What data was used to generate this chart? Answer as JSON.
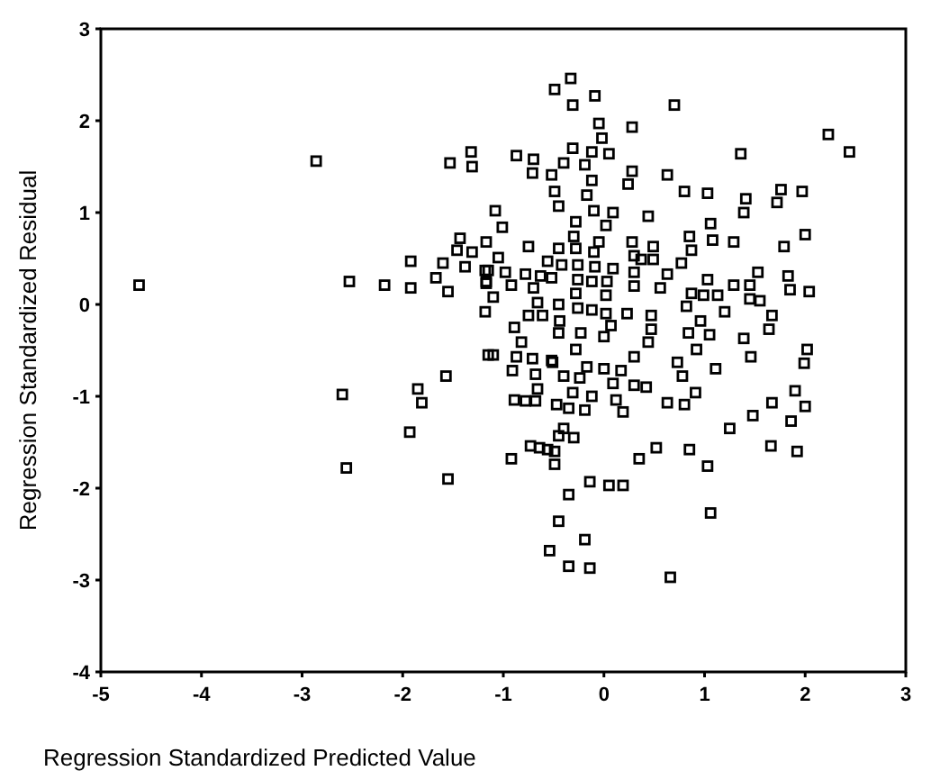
{
  "chart_data": {
    "type": "scatter",
    "xlabel": "Regression Standardized Predicted Value",
    "ylabel": "Regression Standardized Residual",
    "xlim": [
      -5,
      3
    ],
    "ylim": [
      -4,
      3
    ],
    "xticks": [
      -5,
      -4,
      -3,
      -2,
      -1,
      0,
      1,
      2,
      3
    ],
    "yticks": [
      -4,
      -3,
      -2,
      -1,
      0,
      1,
      2,
      3
    ],
    "marker": "square",
    "series": [
      {
        "color": "#000000",
        "x": [
          -4.62,
          -2.86,
          -1.53,
          -1.32,
          -1.31,
          -2.53,
          -2.18,
          -1.92,
          -1.92,
          -1.67,
          -1.6,
          -1.55,
          -1.43,
          -1.46,
          -1.38,
          -1.31,
          -1.17,
          -1.18,
          -1.17,
          -1.18,
          -0.33,
          -0.49,
          -0.09,
          -0.31,
          0.7,
          -0.05,
          0.28,
          -0.02,
          2.23,
          2.44,
          -0.87,
          -0.7,
          -0.31,
          -0.12,
          0.05,
          -0.4,
          -0.19,
          1.36,
          -0.71,
          -0.52,
          -0.12,
          0.28,
          0.24,
          0.63,
          -0.49,
          -0.17,
          0.8,
          1.03,
          1.76,
          1.97,
          1.41,
          1.72,
          -0.45,
          -0.1,
          0.09,
          0.44,
          1.39,
          -1.08,
          -1.01,
          -0.28,
          0.02,
          1.06,
          -0.3,
          0.85,
          1.08,
          1.29,
          2.0,
          -0.75,
          -0.45,
          -0.28,
          -0.05,
          0.28,
          0.49,
          0.87,
          1.79,
          -1.05,
          -0.1,
          0.3,
          0.37,
          0.49,
          0.77,
          -0.56,
          -0.42,
          -0.26,
          -0.09,
          0.09,
          -1.15,
          -0.98,
          -0.78,
          -0.63,
          0.3,
          0.63,
          1.53,
          1.83,
          -1.17,
          -0.92,
          -0.7,
          -0.52,
          -0.26,
          -0.12,
          0.03,
          0.3,
          0.56,
          1.03,
          1.29,
          1.45,
          1.85,
          2.04,
          0.87,
          0.99,
          1.13,
          1.45,
          1.55,
          -1.1,
          -0.66,
          -0.45,
          -0.28,
          0.02,
          -0.75,
          -0.61,
          -0.44,
          -0.26,
          -0.12,
          0.02,
          0.23,
          0.47,
          0.82,
          1.2,
          0.96,
          1.67,
          1.64,
          -0.89,
          -0.82,
          -0.45,
          -0.23,
          0.0,
          0.07,
          0.47,
          0.84,
          1.05,
          1.39,
          2.02,
          -1.1,
          -0.87,
          -0.52,
          -0.28,
          0.44,
          0.92,
          1.46,
          -0.71,
          -0.51,
          -0.17,
          0.0,
          0.17,
          0.3,
          0.73,
          1.99,
          -0.91,
          -0.68,
          -0.4,
          -0.24,
          0.78,
          1.11,
          -0.66,
          -0.31,
          -0.12,
          0.09,
          0.3,
          0.42,
          0.91,
          1.9,
          -0.89,
          -0.78,
          -0.68,
          -0.47,
          -0.35,
          -0.19,
          0.12,
          0.19,
          0.63,
          0.8,
          1.67,
          2.0,
          1.48,
          1.86,
          1.25,
          -0.4,
          -0.45,
          -0.3,
          -0.73,
          -0.64,
          -0.56,
          -0.49,
          -0.92,
          -0.49,
          0.35,
          0.52,
          0.85,
          1.03,
          1.66,
          1.92,
          -0.35,
          -0.14,
          0.05,
          0.19,
          1.06,
          -0.45,
          -0.19,
          -0.54,
          -0.35,
          -0.14,
          0.66,
          -1.15,
          -1.57,
          -1.85,
          -1.81,
          -2.6,
          -1.93,
          -2.56,
          -1.55
        ],
        "values": [
          0.21,
          1.56,
          1.54,
          1.66,
          1.5,
          0.25,
          0.21,
          0.47,
          0.18,
          0.29,
          0.45,
          0.14,
          0.72,
          0.59,
          0.41,
          0.57,
          0.68,
          0.37,
          0.23,
          -0.08,
          2.46,
          2.34,
          2.27,
          2.17,
          2.17,
          1.97,
          1.93,
          1.81,
          1.85,
          1.66,
          1.62,
          1.58,
          1.7,
          1.66,
          1.64,
          1.54,
          1.52,
          1.64,
          1.43,
          1.41,
          1.35,
          1.45,
          1.31,
          1.41,
          1.23,
          1.19,
          1.23,
          1.21,
          1.25,
          1.23,
          1.15,
          1.11,
          1.07,
          1.02,
          1.0,
          0.96,
          1.0,
          1.02,
          0.84,
          0.9,
          0.86,
          0.88,
          0.74,
          0.74,
          0.7,
          0.68,
          0.76,
          0.63,
          0.61,
          0.61,
          0.68,
          0.68,
          0.63,
          0.59,
          0.63,
          0.51,
          0.57,
          0.53,
          0.49,
          0.49,
          0.45,
          0.47,
          0.43,
          0.43,
          0.41,
          0.39,
          0.37,
          0.35,
          0.33,
          0.31,
          0.35,
          0.33,
          0.35,
          0.31,
          0.25,
          0.21,
          0.18,
          0.29,
          0.27,
          0.25,
          0.25,
          0.2,
          0.18,
          0.27,
          0.21,
          0.21,
          0.16,
          0.14,
          0.12,
          0.1,
          0.1,
          0.06,
          0.04,
          0.08,
          0.02,
          0.0,
          0.12,
          0.1,
          -0.12,
          -0.12,
          -0.18,
          -0.04,
          -0.06,
          -0.1,
          -0.1,
          -0.12,
          -0.02,
          -0.08,
          -0.18,
          -0.12,
          -0.27,
          -0.25,
          -0.41,
          -0.31,
          -0.31,
          -0.35,
          -0.23,
          -0.27,
          -0.31,
          -0.33,
          -0.37,
          -0.49,
          -0.55,
          -0.57,
          -0.61,
          -0.49,
          -0.41,
          -0.49,
          -0.57,
          -0.59,
          -0.63,
          -0.68,
          -0.7,
          -0.72,
          -0.57,
          -0.63,
          -0.64,
          -0.72,
          -0.76,
          -0.78,
          -0.8,
          -0.78,
          -0.7,
          -0.92,
          -0.96,
          -1.0,
          -0.86,
          -0.88,
          -0.9,
          -0.96,
          -0.94,
          -1.04,
          -1.05,
          -1.05,
          -1.09,
          -1.13,
          -1.15,
          -1.04,
          -1.17,
          -1.07,
          -1.09,
          -1.07,
          -1.11,
          -1.21,
          -1.27,
          -1.35,
          -1.35,
          -1.43,
          -1.45,
          -1.54,
          -1.56,
          -1.58,
          -1.6,
          -1.68,
          -1.74,
          -1.68,
          -1.56,
          -1.58,
          -1.76,
          -1.54,
          -1.6,
          -2.07,
          -1.93,
          -1.97,
          -1.97,
          -2.27,
          -2.36,
          -2.56,
          -2.68,
          -2.85,
          -2.87,
          -2.97,
          -0.55,
          -0.78,
          -0.92,
          -1.07,
          -0.98,
          -1.39,
          -1.78,
          -1.9
        ]
      }
    ]
  }
}
